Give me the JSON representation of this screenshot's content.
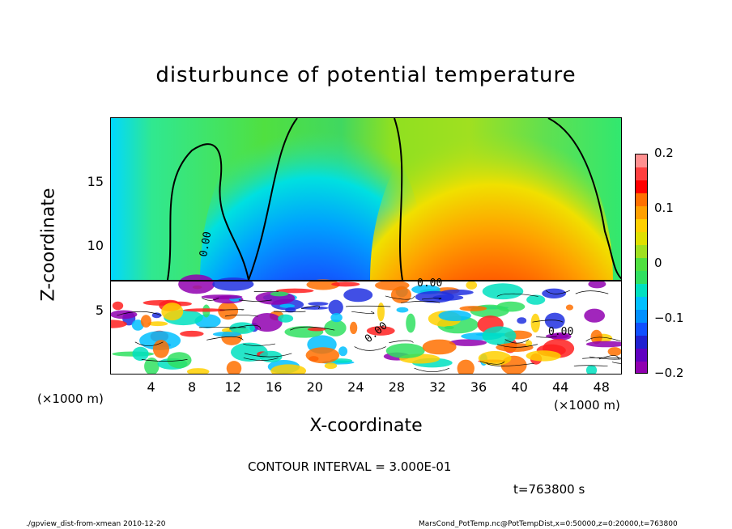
{
  "chart_data": {
    "type": "heatmap",
    "title": "disturbunce of potential temperature",
    "xlabel": "X-coordinate",
    "ylabel": "Z-coordinate",
    "x_unit_left": "(×1000 m)",
    "x_unit_right": "(×1000 m)",
    "xlim": [
      0,
      50
    ],
    "ylim": [
      0,
      20
    ],
    "x_ticks": [
      "4",
      "8",
      "12",
      "16",
      "20",
      "24",
      "28",
      "32",
      "36",
      "40",
      "44",
      "48"
    ],
    "x_tick_values": [
      4,
      8,
      12,
      16,
      20,
      24,
      28,
      32,
      36,
      40,
      44,
      48
    ],
    "y_ticks": [
      "5",
      "10",
      "15"
    ],
    "y_tick_values": [
      5,
      10,
      15
    ],
    "colorbar": {
      "min": -0.2,
      "max": 0.2,
      "tick_labels": [
        "0.2",
        "0.1",
        "0",
        "−0.1",
        "−0.2"
      ],
      "tick_values": [
        0.2,
        0.1,
        0,
        -0.1,
        -0.2
      ]
    },
    "contour_label": "0.00",
    "contour_interval": "CONTOUR INTERVAL = 3.000E-01",
    "time_label": "t=763800 s",
    "features": [
      {
        "kind": "negative-anomaly",
        "x_center": 20,
        "z_top": 19.5,
        "peak": -0.2
      },
      {
        "kind": "positive-anomaly",
        "x_center": 38,
        "z_top": 19.5,
        "peak": 0.2
      }
    ]
  },
  "footer": {
    "left": "./gpview_dist-from-xmean  2010-12-20",
    "right": "MarsCond_PotTemp.nc@PotTempDist,x=0:50000,z=0:20000,t=763800"
  }
}
